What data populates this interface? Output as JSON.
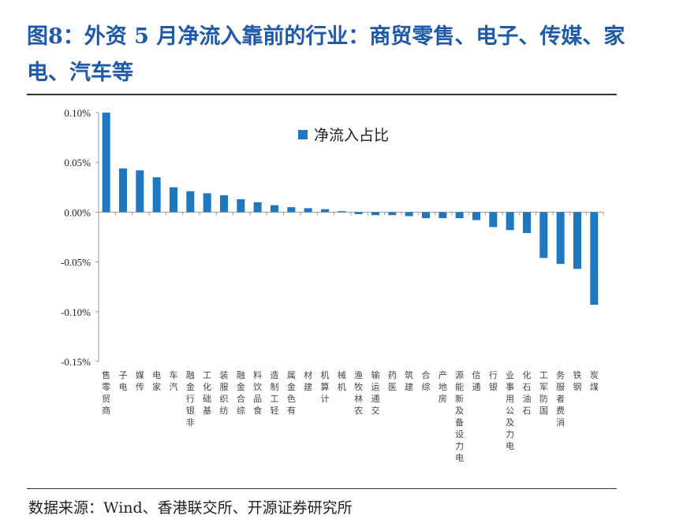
{
  "title": "图8：外资 5 月净流入靠前的行业：商贸零售、电子、传媒、家电、汽车等",
  "source": "数据来源：Wind、香港联交所、开源证券研究所",
  "chart_data": {
    "type": "bar",
    "title": "",
    "xlabel": "",
    "ylabel": "",
    "ylim": [
      -0.15,
      0.1
    ],
    "yticks": [
      0.1,
      0.05,
      0.0,
      -0.05,
      -0.1,
      -0.15
    ],
    "ytick_labels": [
      "0.10%",
      "0.05%",
      "0.00%",
      "-0.05%",
      "-0.10%",
      "-0.15%"
    ],
    "unit": "%",
    "grid": false,
    "legend_position": "top-center",
    "bar_color": "#1f77c0",
    "categories": [
      "商贸零售",
      "电子",
      "传媒",
      "家电",
      "汽车",
      "非银行金融",
      "基础化工",
      "纺织服装",
      "综合金融",
      "食品饮料",
      "轻工制造",
      "有色金属",
      "建材",
      "计算机",
      "机械",
      "农林牧渔",
      "交通运输",
      "医药",
      "建筑",
      "综合",
      "房地产",
      "电力设备及新能源",
      "通信",
      "银行",
      "电力及公用事业",
      "石油石化",
      "国防军工",
      "消费者服务",
      "钢铁",
      "煤炭"
    ],
    "series": [
      {
        "name": "净流入占比",
        "values": [
          0.1,
          0.044,
          0.042,
          0.035,
          0.025,
          0.021,
          0.019,
          0.017,
          0.013,
          0.01,
          0.007,
          0.005,
          0.004,
          0.003,
          0.001,
          -0.002,
          -0.003,
          -0.003,
          -0.004,
          -0.006,
          -0.006,
          -0.006,
          -0.008,
          -0.015,
          -0.018,
          -0.021,
          -0.046,
          -0.052,
          -0.057,
          -0.093
        ]
      }
    ]
  }
}
